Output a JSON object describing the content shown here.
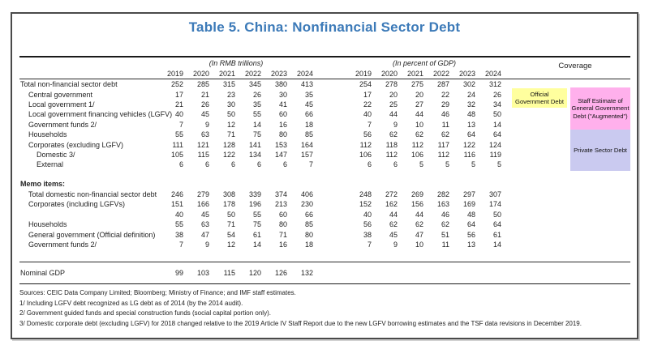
{
  "title": "Table 5. China: Nonfinancial Sector Debt",
  "colors": {
    "title_blue": "#3c7ab8",
    "official_yellow": "#ffff9e",
    "augmented_pink": "#ffb0ec",
    "private_lavender": "#cacaf0"
  },
  "header": {
    "group_rmb": "(In RMB trillions)",
    "group_gdp": "(In percent of GDP)",
    "coverage": "Coverage",
    "years": [
      "2019",
      "2020",
      "2021",
      "2022",
      "2023",
      "2024"
    ]
  },
  "coverage": {
    "boxes": [
      {
        "id": "official",
        "label": "Official Government Debt"
      },
      {
        "id": "augmented",
        "label": "Staff Estimate of General Government Debt (\"Augmented\")"
      },
      {
        "id": "private",
        "label": "Private Sector Debt"
      }
    ]
  },
  "rows": [
    {
      "label": "Total non-financial sector debt",
      "indent": 0,
      "rmb": [
        252,
        285,
        315,
        345,
        380,
        413
      ],
      "gdp": [
        254,
        278,
        275,
        287,
        302,
        312
      ]
    },
    {
      "label": "Central government",
      "indent": 1,
      "rmb": [
        17,
        21,
        23,
        26,
        30,
        35
      ],
      "gdp": [
        17,
        20,
        20,
        22,
        24,
        26
      ]
    },
    {
      "label": "Local government 1/",
      "indent": 1,
      "rmb": [
        21,
        26,
        30,
        35,
        41,
        45
      ],
      "gdp": [
        22,
        25,
        27,
        29,
        32,
        34
      ]
    },
    {
      "label": "Local government financing vehicles (LGFV)",
      "indent": 1,
      "rmb": [
        40,
        45,
        50,
        55,
        60,
        66
      ],
      "gdp": [
        40,
        44,
        44,
        46,
        48,
        50
      ]
    },
    {
      "label": "Government funds 2/",
      "indent": 1,
      "rmb": [
        7,
        9,
        12,
        14,
        16,
        18
      ],
      "gdp": [
        7,
        9,
        10,
        11,
        13,
        14
      ]
    },
    {
      "label": "Households",
      "indent": 1,
      "rmb": [
        55,
        63,
        71,
        75,
        80,
        85
      ],
      "gdp": [
        56,
        62,
        62,
        62,
        64,
        64
      ]
    },
    {
      "label": "Corporates (excluding LGFV)",
      "indent": 1,
      "rmb": [
        111,
        121,
        128,
        141,
        153,
        164
      ],
      "gdp": [
        112,
        118,
        112,
        117,
        122,
        124
      ]
    },
    {
      "label": "Domestic 3/",
      "indent": 2,
      "rmb": [
        105,
        115,
        122,
        134,
        147,
        157
      ],
      "gdp": [
        106,
        112,
        106,
        112,
        116,
        119
      ]
    },
    {
      "label": "External",
      "indent": 2,
      "rmb": [
        6,
        6,
        6,
        6,
        6,
        7
      ],
      "gdp": [
        6,
        6,
        5,
        5,
        5,
        5
      ]
    }
  ],
  "memo": {
    "heading": "Memo items:",
    "rows": [
      {
        "label": "Total domestic non-financial sector debt",
        "indent": 1,
        "rmb": [
          246,
          279,
          308,
          339,
          374,
          406
        ],
        "gdp": [
          248,
          272,
          269,
          282,
          297,
          307
        ]
      },
      {
        "label": "Corporates (including LGFVs)",
        "indent": 1,
        "rmb": [
          151,
          166,
          178,
          196,
          213,
          230
        ],
        "gdp": [
          152,
          162,
          156,
          163,
          169,
          174
        ]
      },
      {
        "label": "",
        "indent": 1,
        "rmb": [
          40,
          45,
          50,
          55,
          60,
          66
        ],
        "gdp": [
          40,
          44,
          44,
          46,
          48,
          50
        ]
      },
      {
        "label": "Households",
        "indent": 1,
        "rmb": [
          55,
          63,
          71,
          75,
          80,
          85
        ],
        "gdp": [
          56,
          62,
          62,
          62,
          64,
          64
        ]
      },
      {
        "label": "General government (Official definition)",
        "indent": 1,
        "rmb": [
          38,
          47,
          54,
          61,
          71,
          80
        ],
        "gdp": [
          38,
          45,
          47,
          51,
          56,
          61
        ]
      },
      {
        "label": "Government funds 2/",
        "indent": 1,
        "rmb": [
          7,
          9,
          12,
          14,
          16,
          18
        ],
        "gdp": [
          7,
          9,
          10,
          11,
          13,
          14
        ]
      }
    ]
  },
  "nominal": {
    "label": "Nominal GDP",
    "rmb": [
      99,
      103,
      115,
      120,
      126,
      132
    ],
    "gdp": [
      "",
      "",
      "",
      "",
      "",
      ""
    ]
  },
  "footnotes": [
    "Sources: CEIC Data Company Limited; Bloomberg; Ministry of Finance; and IMF staff estimates.",
    "1/ Including LGFV debt recognized as LG debt as of 2014 (by the 2014 audit).",
    "2/ Government guided funds and special construction funds (social capital portion only).",
    "3/ Domestic corporate debt (excluding LGFV) for 2018 changed relative to the 2019 Article IV Staff Report due to the new LGFV borrowing estimates and the TSF data revisions in December 2019."
  ]
}
